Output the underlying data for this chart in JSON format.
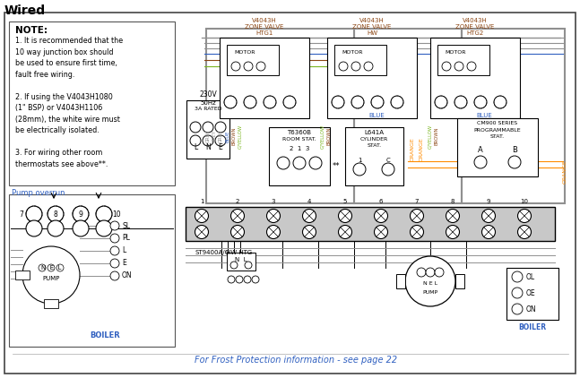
{
  "title": "Wired",
  "bg_color": "#ffffff",
  "note_title": "NOTE:",
  "note_lines": "1. It is recommended that the\n10 way junction box should\nbe used to ensure first time,\nfault free wiring.\n\n2. If using the V4043H1080\n(1\" BSP) or V4043H1106\n(28mm), the white wire must\nbe electrically isolated.\n\n3. For wiring other room\nthermostats see above**.",
  "pump_overrun_label": "Pump overrun",
  "zone_valve_labels": [
    "V4043H\nZONE VALVE\nHTG1",
    "V4043H\nZONE VALVE\nHW",
    "V4043H\nZONE VALVE\nHTG2"
  ],
  "frost_protection": "For Frost Protection information - see page 22",
  "wire_colors": {
    "grey": "#909090",
    "blue": "#3060c0",
    "brown": "#8B4513",
    "gyellow": "#9ACD32",
    "orange": "#FF8C00",
    "black": "#000000"
  },
  "col_blue": "#3060c0",
  "col_brown": "#8B4513",
  "col_orange": "#FF8C00",
  "col_grey": "#909090"
}
